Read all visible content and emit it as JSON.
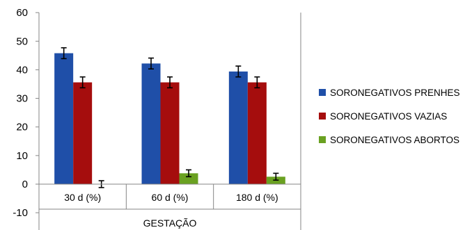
{
  "chart_data": {
    "type": "bar",
    "title": "",
    "xlabel": "GESTAÇÃO",
    "ylabel": "",
    "ylim": [
      -10,
      60
    ],
    "yticks": [
      -10,
      0,
      10,
      20,
      30,
      40,
      50,
      60
    ],
    "grid": false,
    "legend_position": "right",
    "categories": [
      "30 d (%)",
      "60 d (%)",
      "180 d (%)"
    ],
    "series": [
      {
        "name": "SORONEGATIVOS PRENHES",
        "color": "#1F4FA8",
        "values": [
          45.8,
          42.2,
          39.4
        ],
        "errors": [
          1.9,
          1.9,
          1.9
        ]
      },
      {
        "name": "SORONEGATIVOS VAZIAS",
        "color": "#A50D0D",
        "values": [
          35.6,
          35.6,
          35.6
        ],
        "errors": [
          1.9,
          1.9,
          1.9
        ]
      },
      {
        "name": "SORONEGATIVOS ABORTOS",
        "color": "#6AA121",
        "values": [
          0.0,
          3.8,
          2.6
        ],
        "errors": [
          1.2,
          1.2,
          1.2
        ]
      }
    ]
  }
}
